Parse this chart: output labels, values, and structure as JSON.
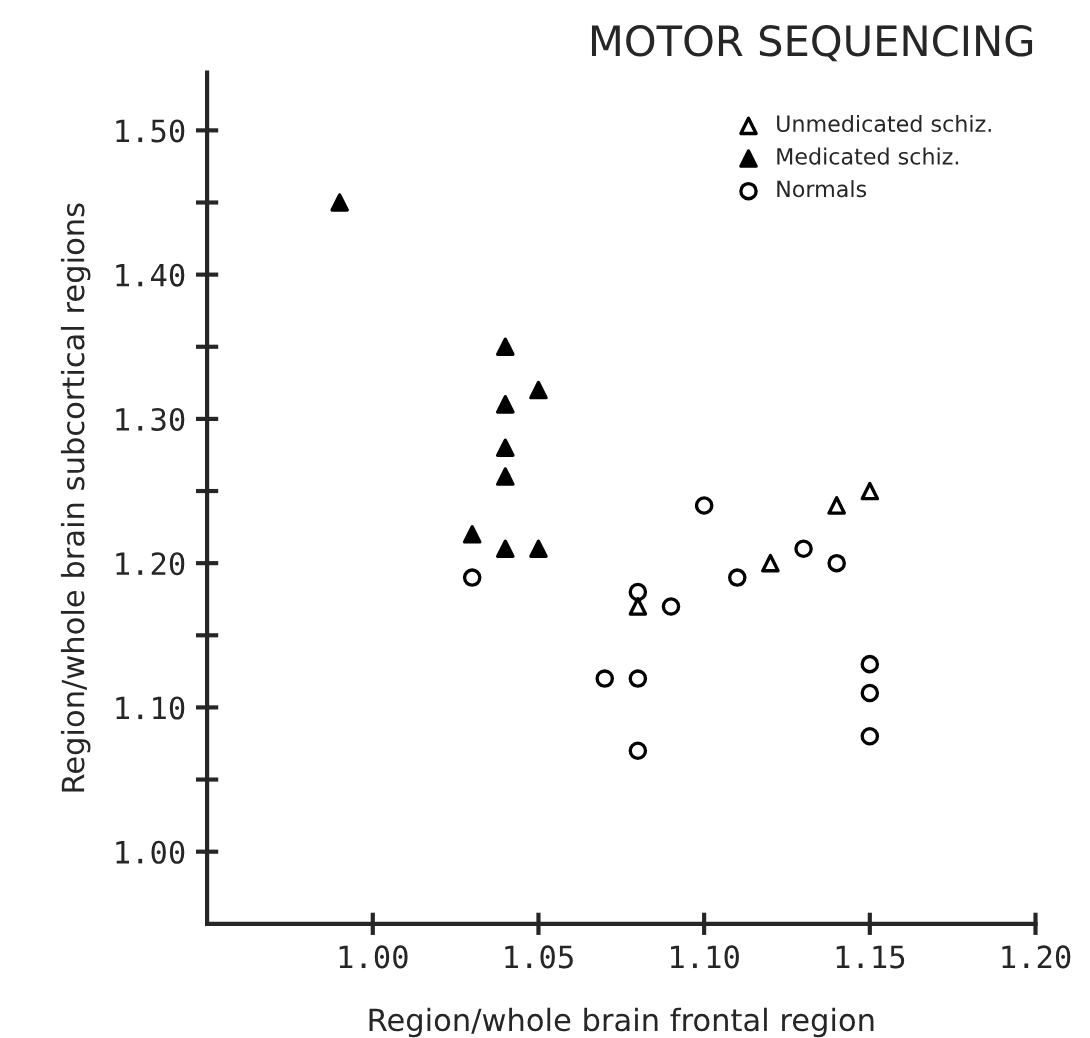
{
  "chart_data": {
    "type": "scatter",
    "title": "MOTOR SEQUENCING",
    "xlabel": "Region/whole brain frontal region",
    "ylabel": "Region/whole brain subcortical regions",
    "xlim": [
      0.95,
      1.2
    ],
    "xticks": [
      {
        "value": 1.0,
        "label": "1.00"
      },
      1.05,
      {
        "value": 1.1,
        "label": "1.10"
      },
      1.15,
      {
        "value": 1.2,
        "label": "1.20"
      }
    ],
    "ylim": [
      0.95,
      1.54
    ],
    "yticks": [
      {
        "value": 1.0,
        "label": "1.00"
      },
      {
        "value": 1.05,
        "label": null
      },
      {
        "value": 1.1,
        "label": "1.10"
      },
      {
        "value": 1.15,
        "label": null
      },
      {
        "value": 1.2,
        "label": "1.20"
      },
      {
        "value": 1.25,
        "label": null
      },
      {
        "value": 1.3,
        "label": "1.30"
      },
      {
        "value": 1.35,
        "label": null
      },
      {
        "value": 1.4,
        "label": "1.40"
      },
      {
        "value": 1.45,
        "label": null
      },
      {
        "value": 1.5,
        "label": "1.50"
      }
    ],
    "grid": false,
    "legend": "top right",
    "series": [
      {
        "name": "Unmedicated schiz.",
        "color": "#000000",
        "marker": "triangle",
        "x": [
          1.08,
          1.12,
          1.14,
          1.15
        ],
        "values": [
          1.17,
          1.2,
          1.24,
          1.25
        ]
      },
      {
        "name": "Medicated schiz.",
        "color": "#000000",
        "marker": "triangle",
        "x": [
          0.99,
          1.03,
          1.04,
          1.04,
          1.04,
          1.04,
          1.04,
          1.05,
          1.05
        ],
        "values": [
          1.45,
          1.22,
          1.35,
          1.31,
          1.28,
          1.26,
          1.21,
          1.32,
          1.21
        ]
      },
      {
        "name": "Normals",
        "color": "#000000",
        "marker": "circle",
        "x": [
          1.03,
          1.07,
          1.08,
          1.08,
          1.08,
          1.09,
          1.1,
          1.11,
          1.13,
          1.14,
          1.15,
          1.15,
          1.15
        ],
        "values": [
          1.19,
          1.12,
          1.18,
          1.12,
          1.07,
          1.17,
          1.24,
          1.19,
          1.21,
          1.2,
          1.13,
          1.11,
          1.08
        ]
      }
    ]
  }
}
